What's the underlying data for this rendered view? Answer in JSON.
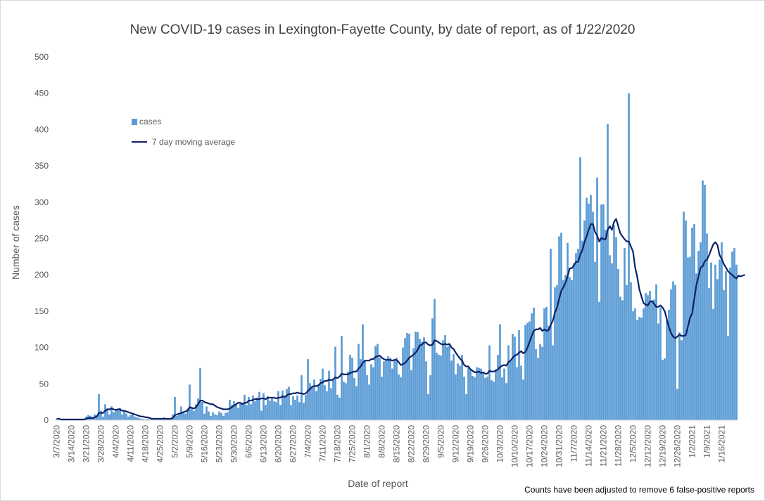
{
  "title": "New COVID-19 cases in Lexington-Fayette County, by date of report, as of 1/22/2020",
  "note": "Counts have been adjusted to remove 6 false-positive reports",
  "colors": {
    "bars": "#5b9bd5",
    "line": "#0d2265",
    "grid": "#d9d9d9",
    "axis_text": "#595959"
  },
  "chart_data": {
    "type": "bar",
    "xlabel": "Date of report",
    "ylabel": "Number of cases",
    "ylim": [
      0,
      500
    ],
    "yticks": [
      0,
      50,
      100,
      150,
      200,
      250,
      300,
      350,
      400,
      450,
      500
    ],
    "grid": false,
    "legend_position": "top-left",
    "start_date": "3/7/2020",
    "tick_labels": [
      "3/7/2020",
      "3/14/2020",
      "3/21/2020",
      "3/28/2020",
      "4/4/2020",
      "4/11/2020",
      "4/18/2020",
      "4/25/2020",
      "5/2/2020",
      "5/9/2020",
      "5/16/2020",
      "5/23/2020",
      "5/30/2020",
      "6/6/2020",
      "6/13/2020",
      "6/20/2020",
      "6/27/2020",
      "7/4/2020",
      "7/11/2020",
      "7/18/2020",
      "7/25/2020",
      "8/1/2020",
      "8/8/2020",
      "8/15/2020",
      "8/22/2020",
      "8/29/2020",
      "9/5/2020",
      "9/12/2020",
      "9/19/2020",
      "9/26/2020",
      "10/3/2020",
      "10/10/2020",
      "10/17/2020",
      "10/24/2020",
      "10/31/2020",
      "11/7/2020",
      "11/14/2020",
      "11/21/2020",
      "11/28/2020",
      "12/5/2020",
      "12/12/2020",
      "12/19/2020",
      "12/26/2020",
      "1/2/2021",
      "1/9/2021",
      "1/16/2021"
    ],
    "series": [
      {
        "name": "cases",
        "type": "bar",
        "values": [
          2,
          0,
          1,
          0,
          1,
          0,
          0,
          1,
          1,
          1,
          2,
          1,
          2,
          1,
          5,
          7,
          6,
          3,
          8,
          7,
          36,
          13,
          5,
          22,
          16,
          8,
          19,
          11,
          14,
          16,
          17,
          8,
          12,
          9,
          5,
          7,
          10,
          5,
          4,
          3,
          2,
          2,
          1,
          2,
          1,
          1,
          1,
          2,
          1,
          2,
          3,
          4,
          2,
          2,
          3,
          8,
          32,
          6,
          8,
          19,
          12,
          9,
          16,
          49,
          17,
          13,
          22,
          30,
          72,
          25,
          9,
          19,
          12,
          6,
          11,
          8,
          7,
          12,
          10,
          6,
          10,
          11,
          28,
          21,
          26,
          22,
          17,
          23,
          24,
          35,
          21,
          32,
          22,
          34,
          26,
          31,
          39,
          13,
          37,
          21,
          33,
          27,
          30,
          26,
          25,
          40,
          21,
          41,
          32,
          43,
          46,
          21,
          33,
          28,
          34,
          25,
          62,
          24,
          35,
          84,
          51,
          46,
          56,
          40,
          49,
          57,
          71,
          48,
          40,
          68,
          44,
          55,
          101,
          35,
          31,
          116,
          53,
          51,
          67,
          90,
          86,
          58,
          47,
          105,
          84,
          132,
          82,
          62,
          49,
          77,
          73,
          102,
          105,
          86,
          60,
          81,
          82,
          88,
          86,
          71,
          82,
          86,
          63,
          59,
          100,
          113,
          120,
          119,
          69,
          99,
          122,
          121,
          112,
          108,
          114,
          81,
          36,
          62,
          140,
          167,
          93,
          90,
          89,
          110,
          117,
          101,
          103,
          82,
          91,
          63,
          78,
          75,
          90,
          60,
          36,
          72,
          70,
          61,
          59,
          73,
          72,
          71,
          65,
          58,
          60,
          103,
          55,
          53,
          70,
          90,
          132,
          59,
          71,
          51,
          103,
          81,
          119,
          115,
          73,
          124,
          75,
          56,
          131,
          134,
          136,
          147,
          155,
          98,
          86,
          105,
          101,
          154,
          156,
          130,
          236,
          103,
          183,
          186,
          253,
          258,
          193,
          200,
          244,
          197,
          193,
          216,
          230,
          236,
          362,
          247,
          275,
          306,
          298,
          310,
          287,
          218,
          334,
          163,
          297,
          297,
          262,
          408,
          227,
          216,
          268,
          252,
          208,
          170,
          165,
          237,
          186,
          450,
          190,
          150,
          154,
          138,
          142,
          141,
          154,
          175,
          172,
          178,
          163,
          166,
          187,
          133,
          155,
          83,
          85,
          137,
          152,
          180,
          191,
          186,
          43,
          121,
          110,
          287,
          275,
          224,
          225,
          265,
          270,
          202,
          233,
          245,
          330,
          324,
          257,
          182,
          217,
          153,
          214,
          194,
          221,
          245,
          179,
          205,
          116,
          210,
          232,
          237,
          214
        ]
      },
      {
        "name": "7 day moving average",
        "type": "line",
        "values": [
          2,
          2,
          1,
          1,
          1,
          1,
          1,
          1,
          1,
          1,
          1,
          1,
          1,
          1,
          2,
          3,
          3,
          3,
          4,
          5,
          10,
          10,
          10,
          13,
          15,
          15,
          16,
          15,
          14,
          15,
          15,
          13,
          13,
          12,
          11,
          10,
          9,
          8,
          7,
          6,
          5,
          5,
          4,
          4,
          3,
          2,
          2,
          2,
          2,
          2,
          2,
          2,
          2,
          2,
          2,
          3,
          7,
          8,
          9,
          10,
          11,
          12,
          13,
          18,
          17,
          16,
          18,
          22,
          27,
          27,
          25,
          24,
          23,
          22,
          22,
          20,
          18,
          17,
          16,
          15,
          15,
          15,
          16,
          18,
          20,
          22,
          24,
          24,
          22,
          24,
          24,
          27,
          27,
          28,
          29,
          29,
          29,
          30,
          30,
          29,
          31,
          31,
          31,
          31,
          30,
          31,
          31,
          33,
          32,
          34,
          36,
          36,
          37,
          37,
          38,
          37,
          37,
          36,
          37,
          40,
          43,
          46,
          47,
          47,
          48,
          51,
          52,
          54,
          54,
          56,
          55,
          56,
          59,
          58,
          60,
          64,
          63,
          63,
          63,
          65,
          66,
          67,
          67,
          71,
          74,
          79,
          82,
          82,
          82,
          84,
          84,
          87,
          88,
          89,
          86,
          84,
          83,
          83,
          83,
          82,
          83,
          83,
          80,
          76,
          77,
          79,
          82,
          86,
          88,
          90,
          93,
          97,
          103,
          104,
          107,
          107,
          104,
          103,
          104,
          110,
          109,
          107,
          105,
          104,
          105,
          104,
          105,
          100,
          98,
          93,
          89,
          85,
          82,
          76,
          74,
          74,
          70,
          68,
          66,
          66,
          67,
          65,
          66,
          64,
          64,
          68,
          67,
          67,
          68,
          70,
          73,
          75,
          76,
          75,
          80,
          82,
          86,
          89,
          90,
          93,
          95,
          92,
          94,
          100,
          108,
          116,
          123,
          125,
          125,
          127,
          123,
          125,
          123,
          124,
          131,
          137,
          148,
          155,
          167,
          178,
          183,
          189,
          198,
          209,
          209,
          213,
          218,
          218,
          228,
          234,
          245,
          253,
          262,
          270,
          270,
          259,
          254,
          246,
          251,
          249,
          249,
          262,
          267,
          262,
          273,
          277,
          267,
          257,
          253,
          249,
          246,
          246,
          239,
          232,
          210,
          197,
          180,
          170,
          161,
          159,
          158,
          163,
          164,
          160,
          156,
          156,
          158,
          155,
          150,
          139,
          128,
          120,
          115,
          113,
          115,
          118,
          116,
          116,
          117,
          129,
          141,
          147,
          167,
          186,
          198,
          210,
          212,
          219,
          221,
          227,
          235,
          242,
          245,
          241,
          227,
          222,
          215,
          210,
          205,
          202,
          200,
          197,
          195,
          199,
          198,
          199,
          200
        ]
      }
    ]
  }
}
